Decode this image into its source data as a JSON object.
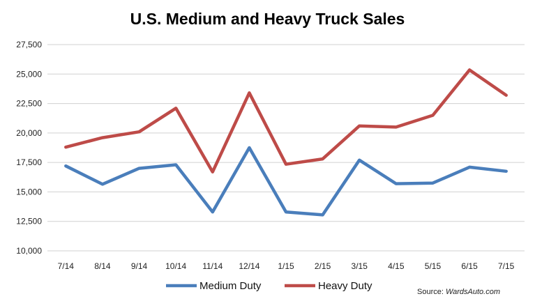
{
  "chart_data": {
    "type": "line",
    "title": "U.S. Medium and Heavy Truck Sales",
    "categories": [
      "7/14",
      "8/14",
      "9/14",
      "10/14",
      "11/14",
      "12/14",
      "1/15",
      "2/15",
      "3/15",
      "4/15",
      "5/15",
      "6/15",
      "7/15"
    ],
    "series": [
      {
        "name": "Medium Duty",
        "color": "#4a7ebb",
        "values": [
          17200,
          15650,
          17000,
          17300,
          13300,
          18750,
          13300,
          13050,
          17700,
          15700,
          15750,
          17100,
          16750
        ]
      },
      {
        "name": "Heavy Duty",
        "color": "#be4b48",
        "values": [
          18800,
          19600,
          20100,
          22100,
          16700,
          23400,
          17350,
          17800,
          20600,
          20500,
          21500,
          25350,
          23200
        ]
      }
    ],
    "y_ticks": [
      "10,000",
      "12,500",
      "15,000",
      "17,500",
      "20,000",
      "22,500",
      "25,000",
      "27,500"
    ],
    "ylim": [
      10000,
      27500
    ],
    "grid": true,
    "legend_position": "bottom",
    "source": {
      "label": "Source: ",
      "name": "WardsAuto.com"
    }
  }
}
